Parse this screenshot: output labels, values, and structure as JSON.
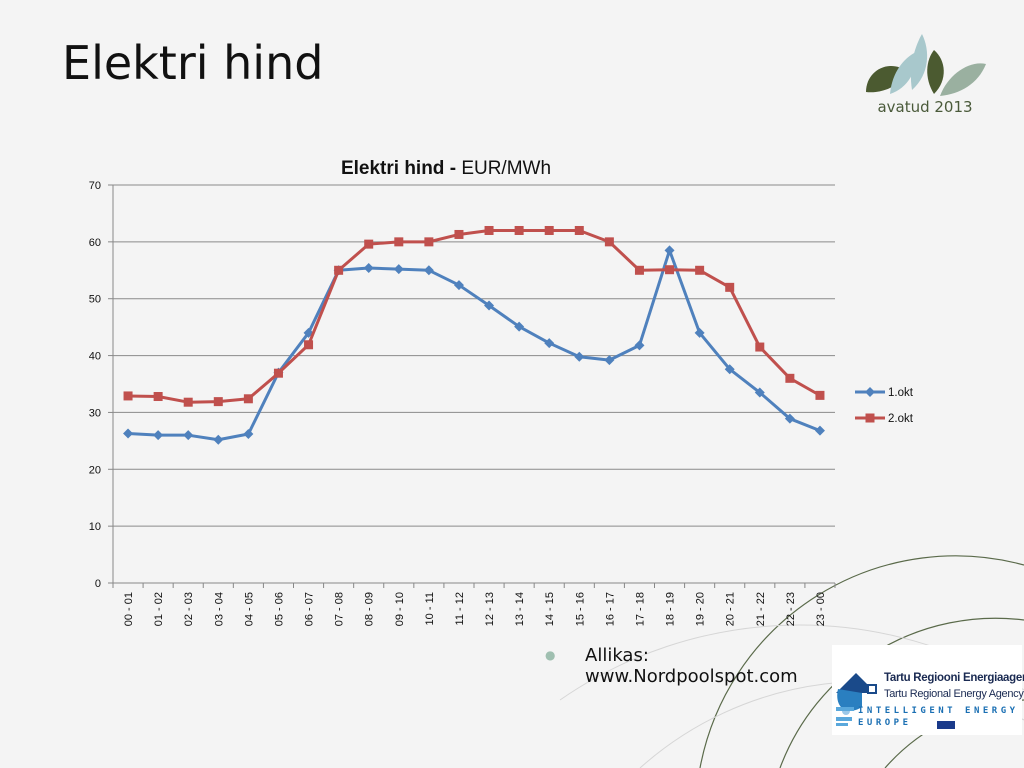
{
  "slide": {
    "title": "Elektri hind",
    "logo_caption": "avatud 2013",
    "source_text_line1": "Allikas:",
    "source_text_line2": "www.Nordpoolspot.com",
    "agency_name_et": "Tartu Regiooni Energiaagentuur",
    "agency_name_en": "Tartu Regional Energy Agency",
    "iee_line1": "INTELLIGENT ENERGY",
    "iee_line2": "EUROPE"
  },
  "chart_data": {
    "type": "line",
    "title_bold": "Elektri hind - ",
    "title_normal": "EUR/MWh",
    "xlabel": "",
    "ylabel": "",
    "ylim": [
      0,
      70
    ],
    "yticks": [
      0,
      10,
      20,
      30,
      40,
      50,
      60,
      70
    ],
    "grid": true,
    "legend_position": "right",
    "categories": [
      "00 - 01",
      "01 - 02",
      "02 - 03",
      "03 - 04",
      "04 - 05",
      "05 - 06",
      "06 - 07",
      "07 - 08",
      "08 - 09",
      "09 - 10",
      "10 - 11",
      "11 - 12",
      "12 - 13",
      "13 - 14",
      "14 - 15",
      "15 - 16",
      "16 - 17",
      "17 - 18",
      "18 - 19",
      "19 - 20",
      "20 - 21",
      "21 - 22",
      "22 - 23",
      "23 - 00"
    ],
    "series": [
      {
        "name": "1.okt",
        "color": "#4f81bd",
        "marker": "diamond",
        "values": [
          26.3,
          26.0,
          26.0,
          25.2,
          26.2,
          37.0,
          44.0,
          55.0,
          55.4,
          55.2,
          55.0,
          52.4,
          48.8,
          45.1,
          42.2,
          39.8,
          39.2,
          41.8,
          58.5,
          44.0,
          37.6,
          33.5,
          28.9,
          26.8
        ]
      },
      {
        "name": "2.okt",
        "color": "#c0504d",
        "marker": "square",
        "values": [
          32.9,
          32.8,
          31.8,
          31.9,
          32.4,
          36.9,
          41.9,
          55.0,
          59.6,
          60.0,
          60.0,
          61.3,
          62.0,
          62.0,
          62.0,
          62.0,
          60.0,
          55.0,
          55.1,
          55.0,
          52.0,
          41.5,
          36.0,
          33.0
        ]
      }
    ]
  }
}
